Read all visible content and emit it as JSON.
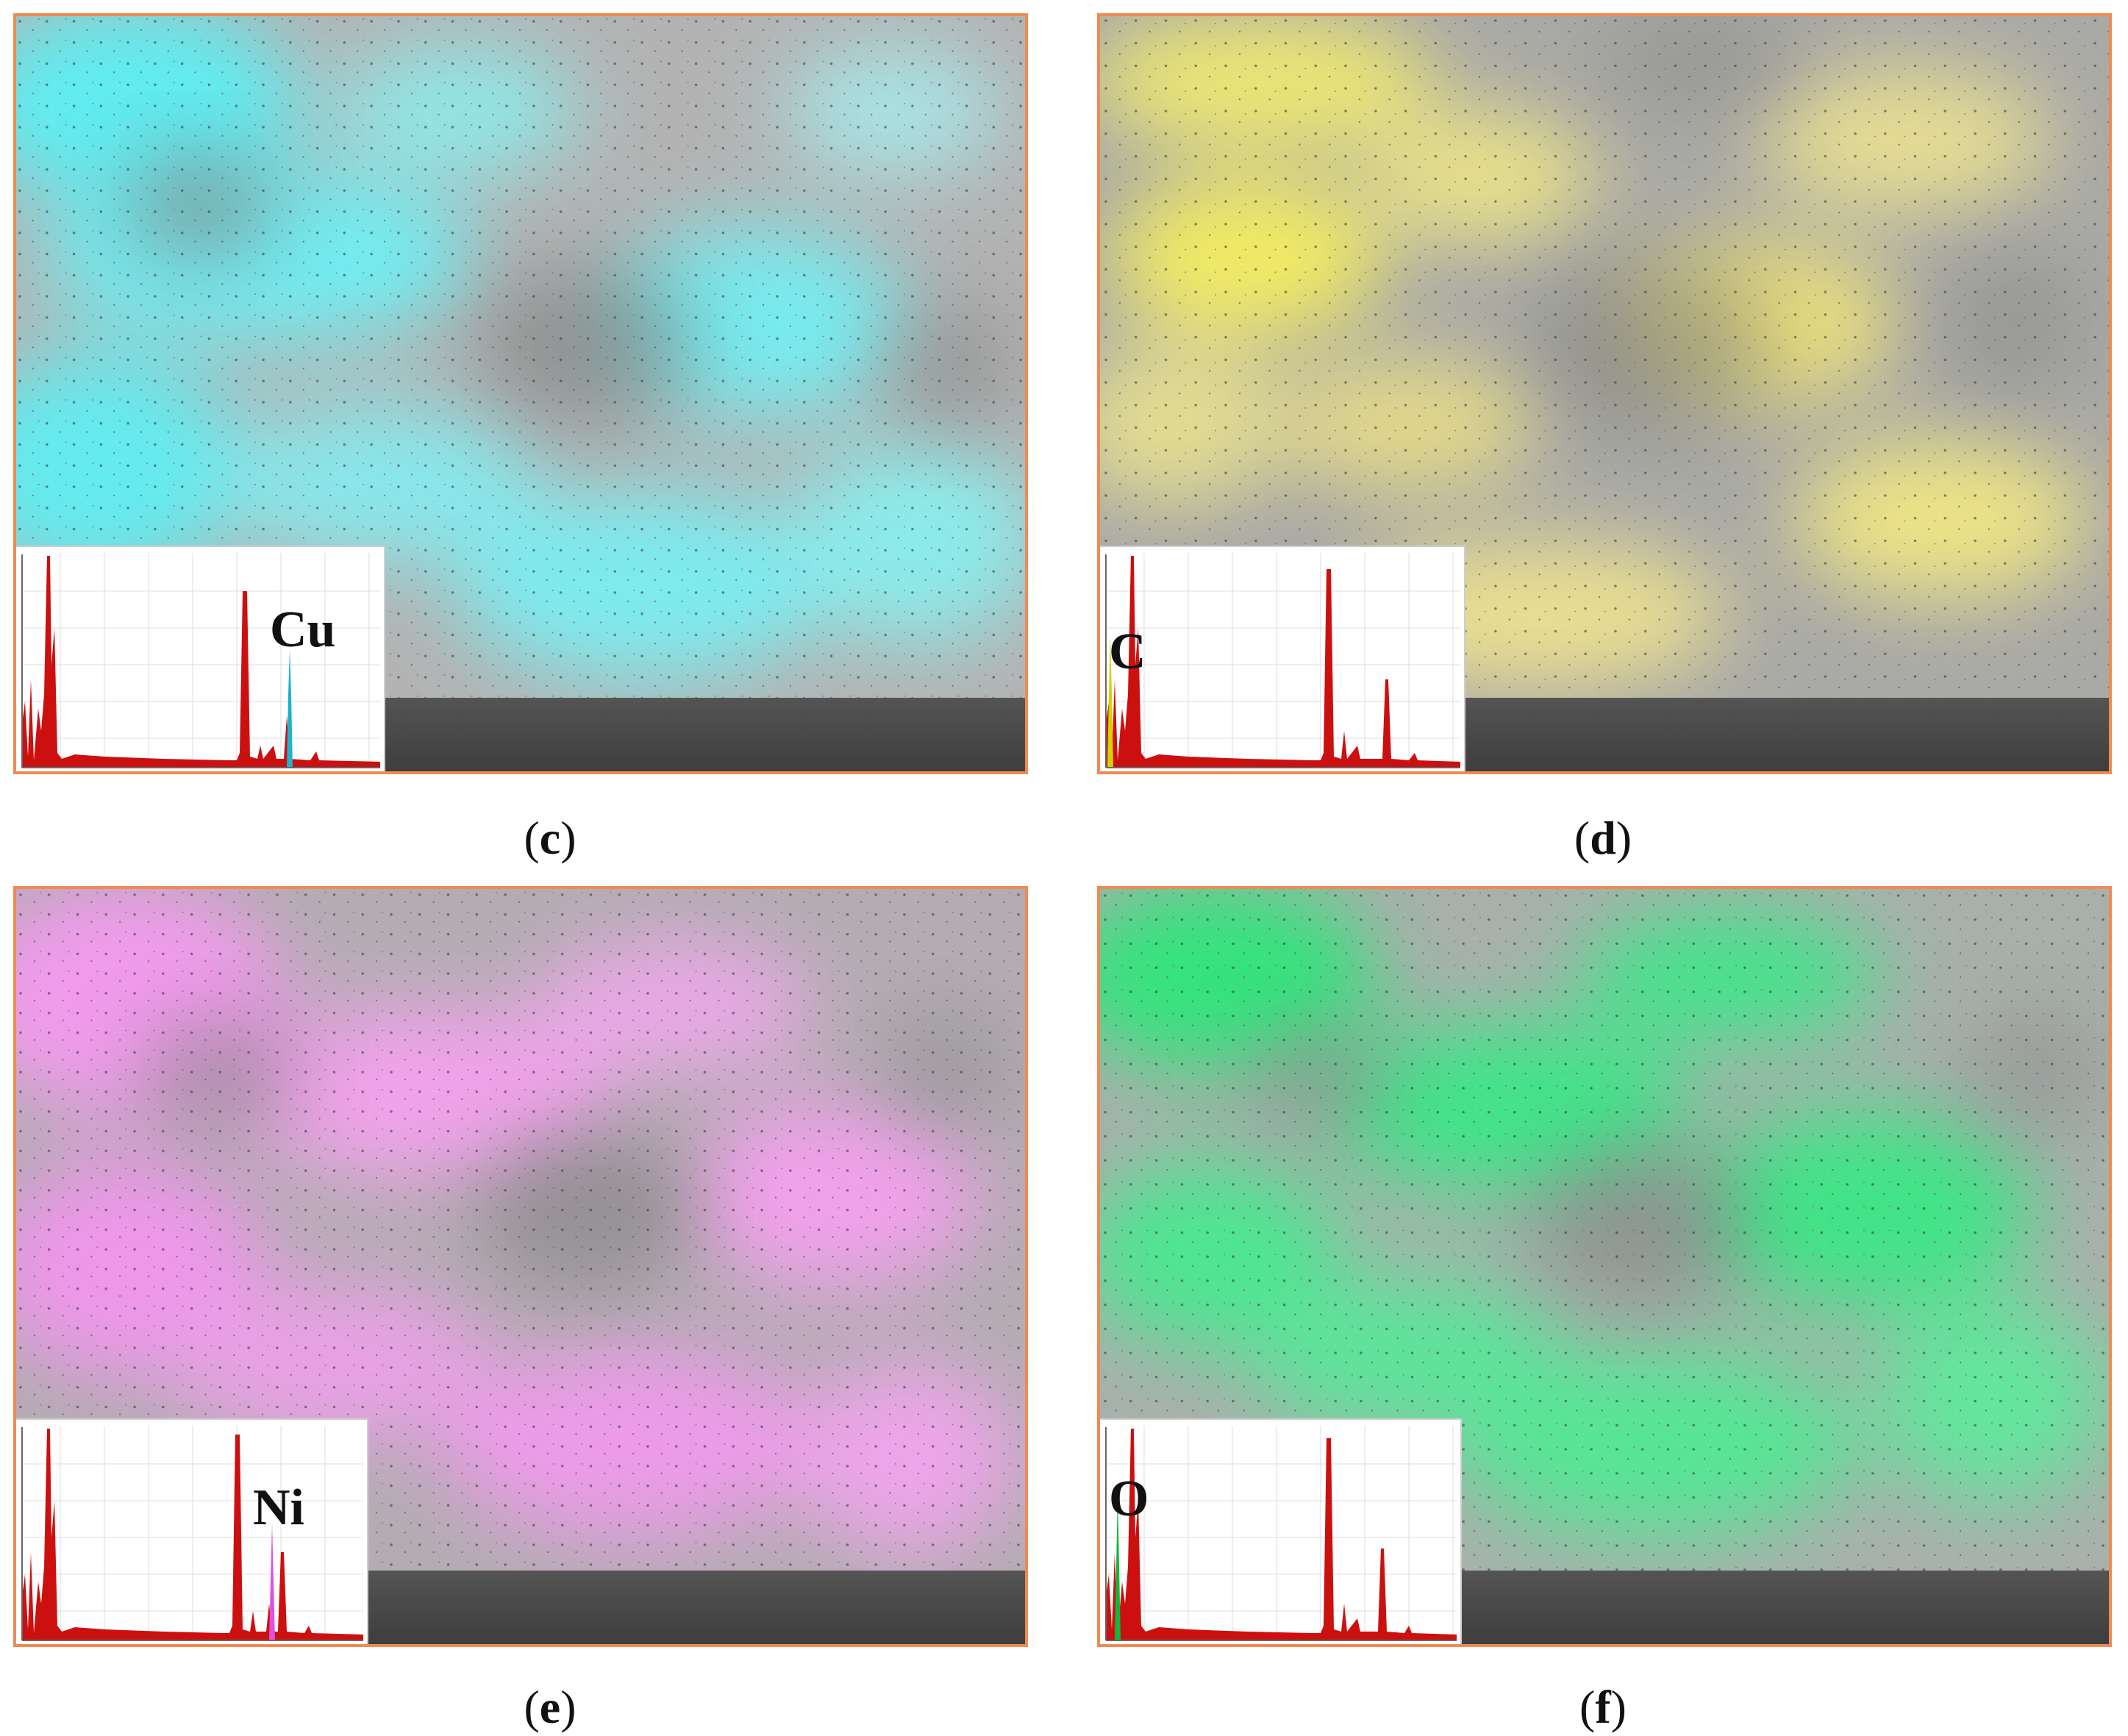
{
  "panels": [
    {
      "id": "c",
      "element": "Cu",
      "tint": "#52eef2",
      "spectrum_marker_color": "#1cb4cc",
      "caption_open": "(",
      "caption_letter": "c",
      "caption_close": ")"
    },
    {
      "id": "d",
      "element": "C",
      "tint": "#f6ef6e",
      "spectrum_marker_color": "#d8d000",
      "caption_open": "(",
      "caption_letter": "d",
      "caption_close": ")"
    },
    {
      "id": "e",
      "element": "Ni",
      "tint": "#f493ee",
      "spectrum_marker_color": "#e050e0",
      "caption_open": "(",
      "caption_letter": "e",
      "caption_close": ")"
    },
    {
      "id": "f",
      "element": "O",
      "tint": "#2ded7d",
      "spectrum_marker_color": "#10b840",
      "caption_open": "(",
      "caption_letter": "f",
      "caption_close": ")"
    }
  ],
  "colors": {
    "frame": "#f08a55",
    "spectrum": "#cc1010",
    "grid": "#d9d9d9"
  }
}
